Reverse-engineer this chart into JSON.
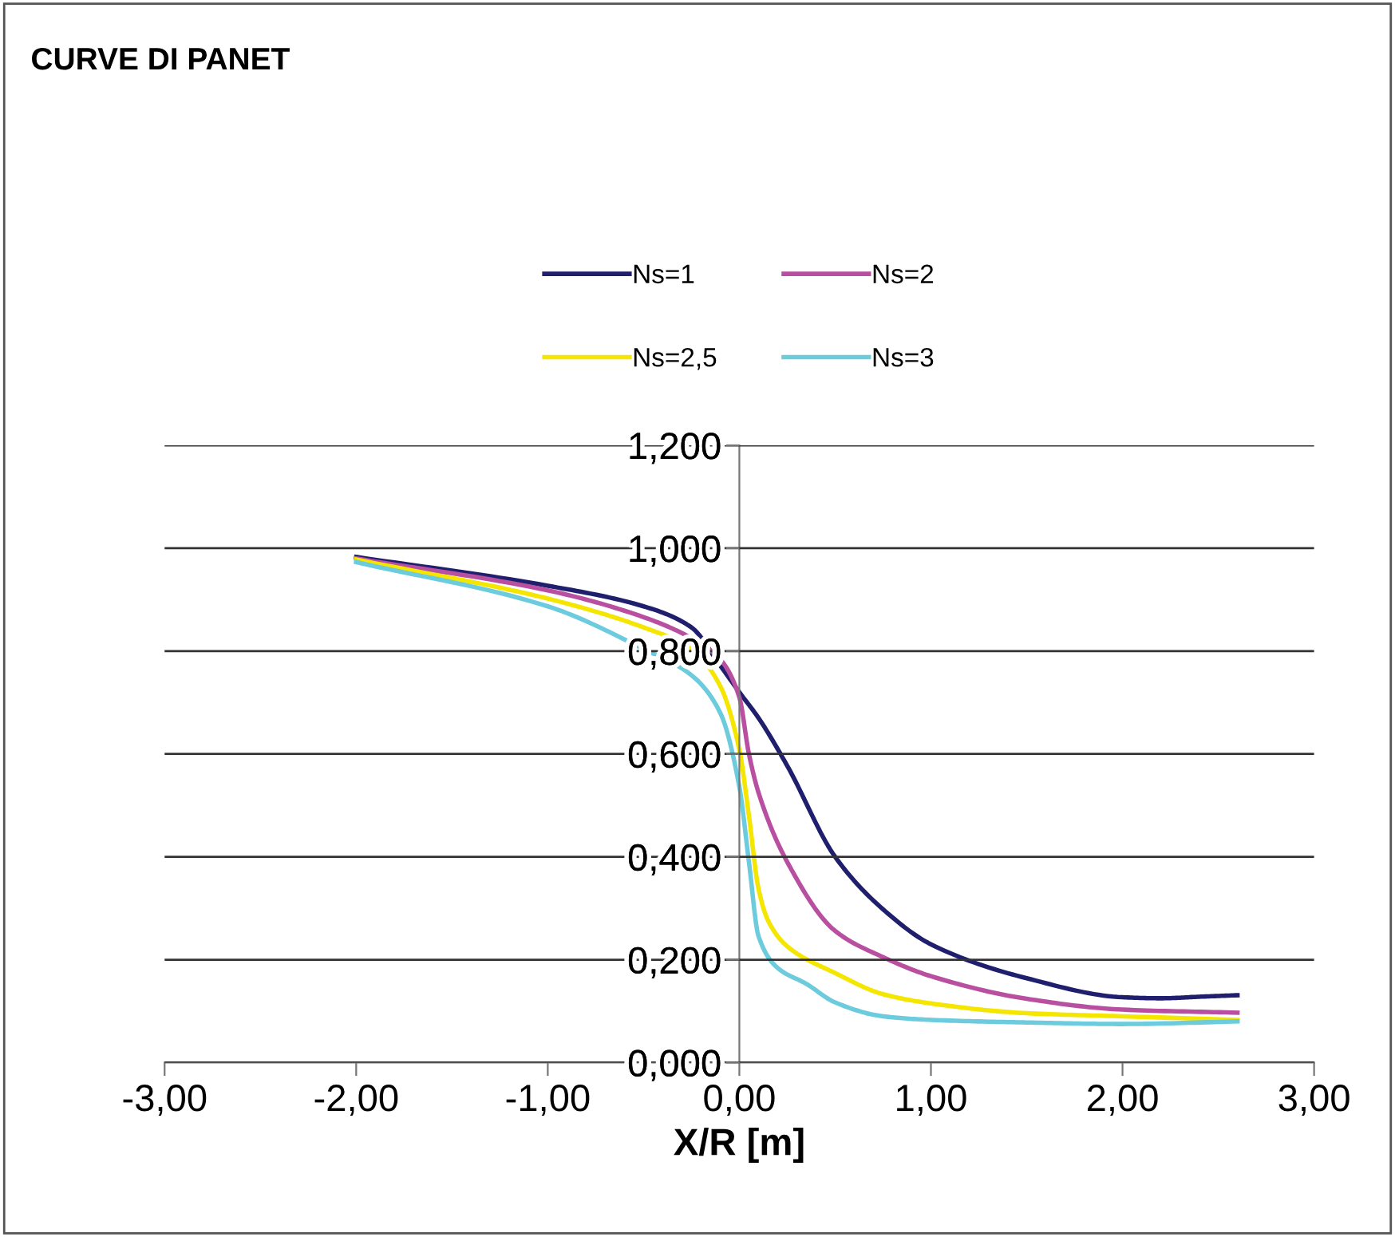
{
  "chart_data": {
    "type": "line",
    "title": "CURVE DI PANET",
    "xlabel": "X/R [m]",
    "xlim": [
      -3,
      3
    ],
    "xticks": [
      {
        "value": -3,
        "label": "-3,00"
      },
      {
        "value": -2,
        "label": "-2,00"
      },
      {
        "value": -1,
        "label": "-1,00"
      },
      {
        "value": 0,
        "label": "0,00"
      },
      {
        "value": 1,
        "label": "1,00"
      },
      {
        "value": 2,
        "label": "2,00"
      },
      {
        "value": 3,
        "label": "3,00"
      }
    ],
    "ylim": [
      0,
      1.2
    ],
    "yticks": [
      {
        "value": 0,
        "label": "0,000"
      },
      {
        "value": 0.2,
        "label": "0,200"
      },
      {
        "value": 0.4,
        "label": "0,400"
      },
      {
        "value": 0.6,
        "label": "0,600"
      },
      {
        "value": 0.8,
        "label": "0,800"
      },
      {
        "value": 1.0,
        "label": "1,000"
      },
      {
        "value": 1.2,
        "label": "1,200"
      }
    ],
    "grid": "y",
    "legend": "top",
    "marker": "none",
    "line_style": "solid",
    "series": [
      {
        "name": "Ns=1",
        "color": "#1f1f6e",
        "x": [
          -2,
          -1,
          -0.5,
          -0.25,
          -0.1,
          0,
          0.1,
          0.25,
          0.5,
          0.75,
          1.0,
          1.5,
          2.0,
          2.2,
          2.4,
          2.6
        ],
        "values": [
          0.983,
          0.927,
          0.887,
          0.846,
          0.772,
          0.72,
          0.67,
          0.577,
          0.4,
          0.298,
          0.23,
          0.164,
          0.127,
          0.125,
          0.128,
          0.131
        ]
      },
      {
        "name": "Ns=2",
        "color": "#b84fa0",
        "x": [
          -2,
          -1,
          -0.5,
          -0.25,
          -0.1,
          0,
          0.05,
          0.1,
          0.25,
          0.5,
          0.75,
          1.0,
          1.5,
          2.0,
          2.6
        ],
        "values": [
          0.98,
          0.918,
          0.866,
          0.825,
          0.784,
          0.71,
          0.6,
          0.525,
          0.39,
          0.256,
          0.205,
          0.168,
          0.124,
          0.103,
          0.097
        ]
      },
      {
        "name": "Ns=2,5",
        "color": "#f5e600",
        "x": [
          -2,
          -1,
          -0.5,
          -0.25,
          -0.1,
          0,
          0.05,
          0.1,
          0.15,
          0.25,
          0.5,
          0.75,
          1.0,
          1.5,
          2.0,
          2.6
        ],
        "values": [
          0.978,
          0.902,
          0.846,
          0.804,
          0.732,
          0.608,
          0.48,
          0.338,
          0.276,
          0.226,
          0.174,
          0.133,
          0.115,
          0.096,
          0.09,
          0.083
        ]
      },
      {
        "name": "Ns=3",
        "color": "#6ccbdc",
        "x": [
          -2,
          -1,
          -0.5,
          -0.25,
          -0.1,
          0,
          0.05,
          0.1,
          0.2,
          0.35,
          0.5,
          0.75,
          1.0,
          1.5,
          2.0,
          2.6
        ],
        "values": [
          0.973,
          0.887,
          0.804,
          0.753,
          0.68,
          0.536,
          0.39,
          0.246,
          0.184,
          0.153,
          0.117,
          0.09,
          0.083,
          0.078,
          0.075,
          0.08
        ]
      }
    ]
  }
}
